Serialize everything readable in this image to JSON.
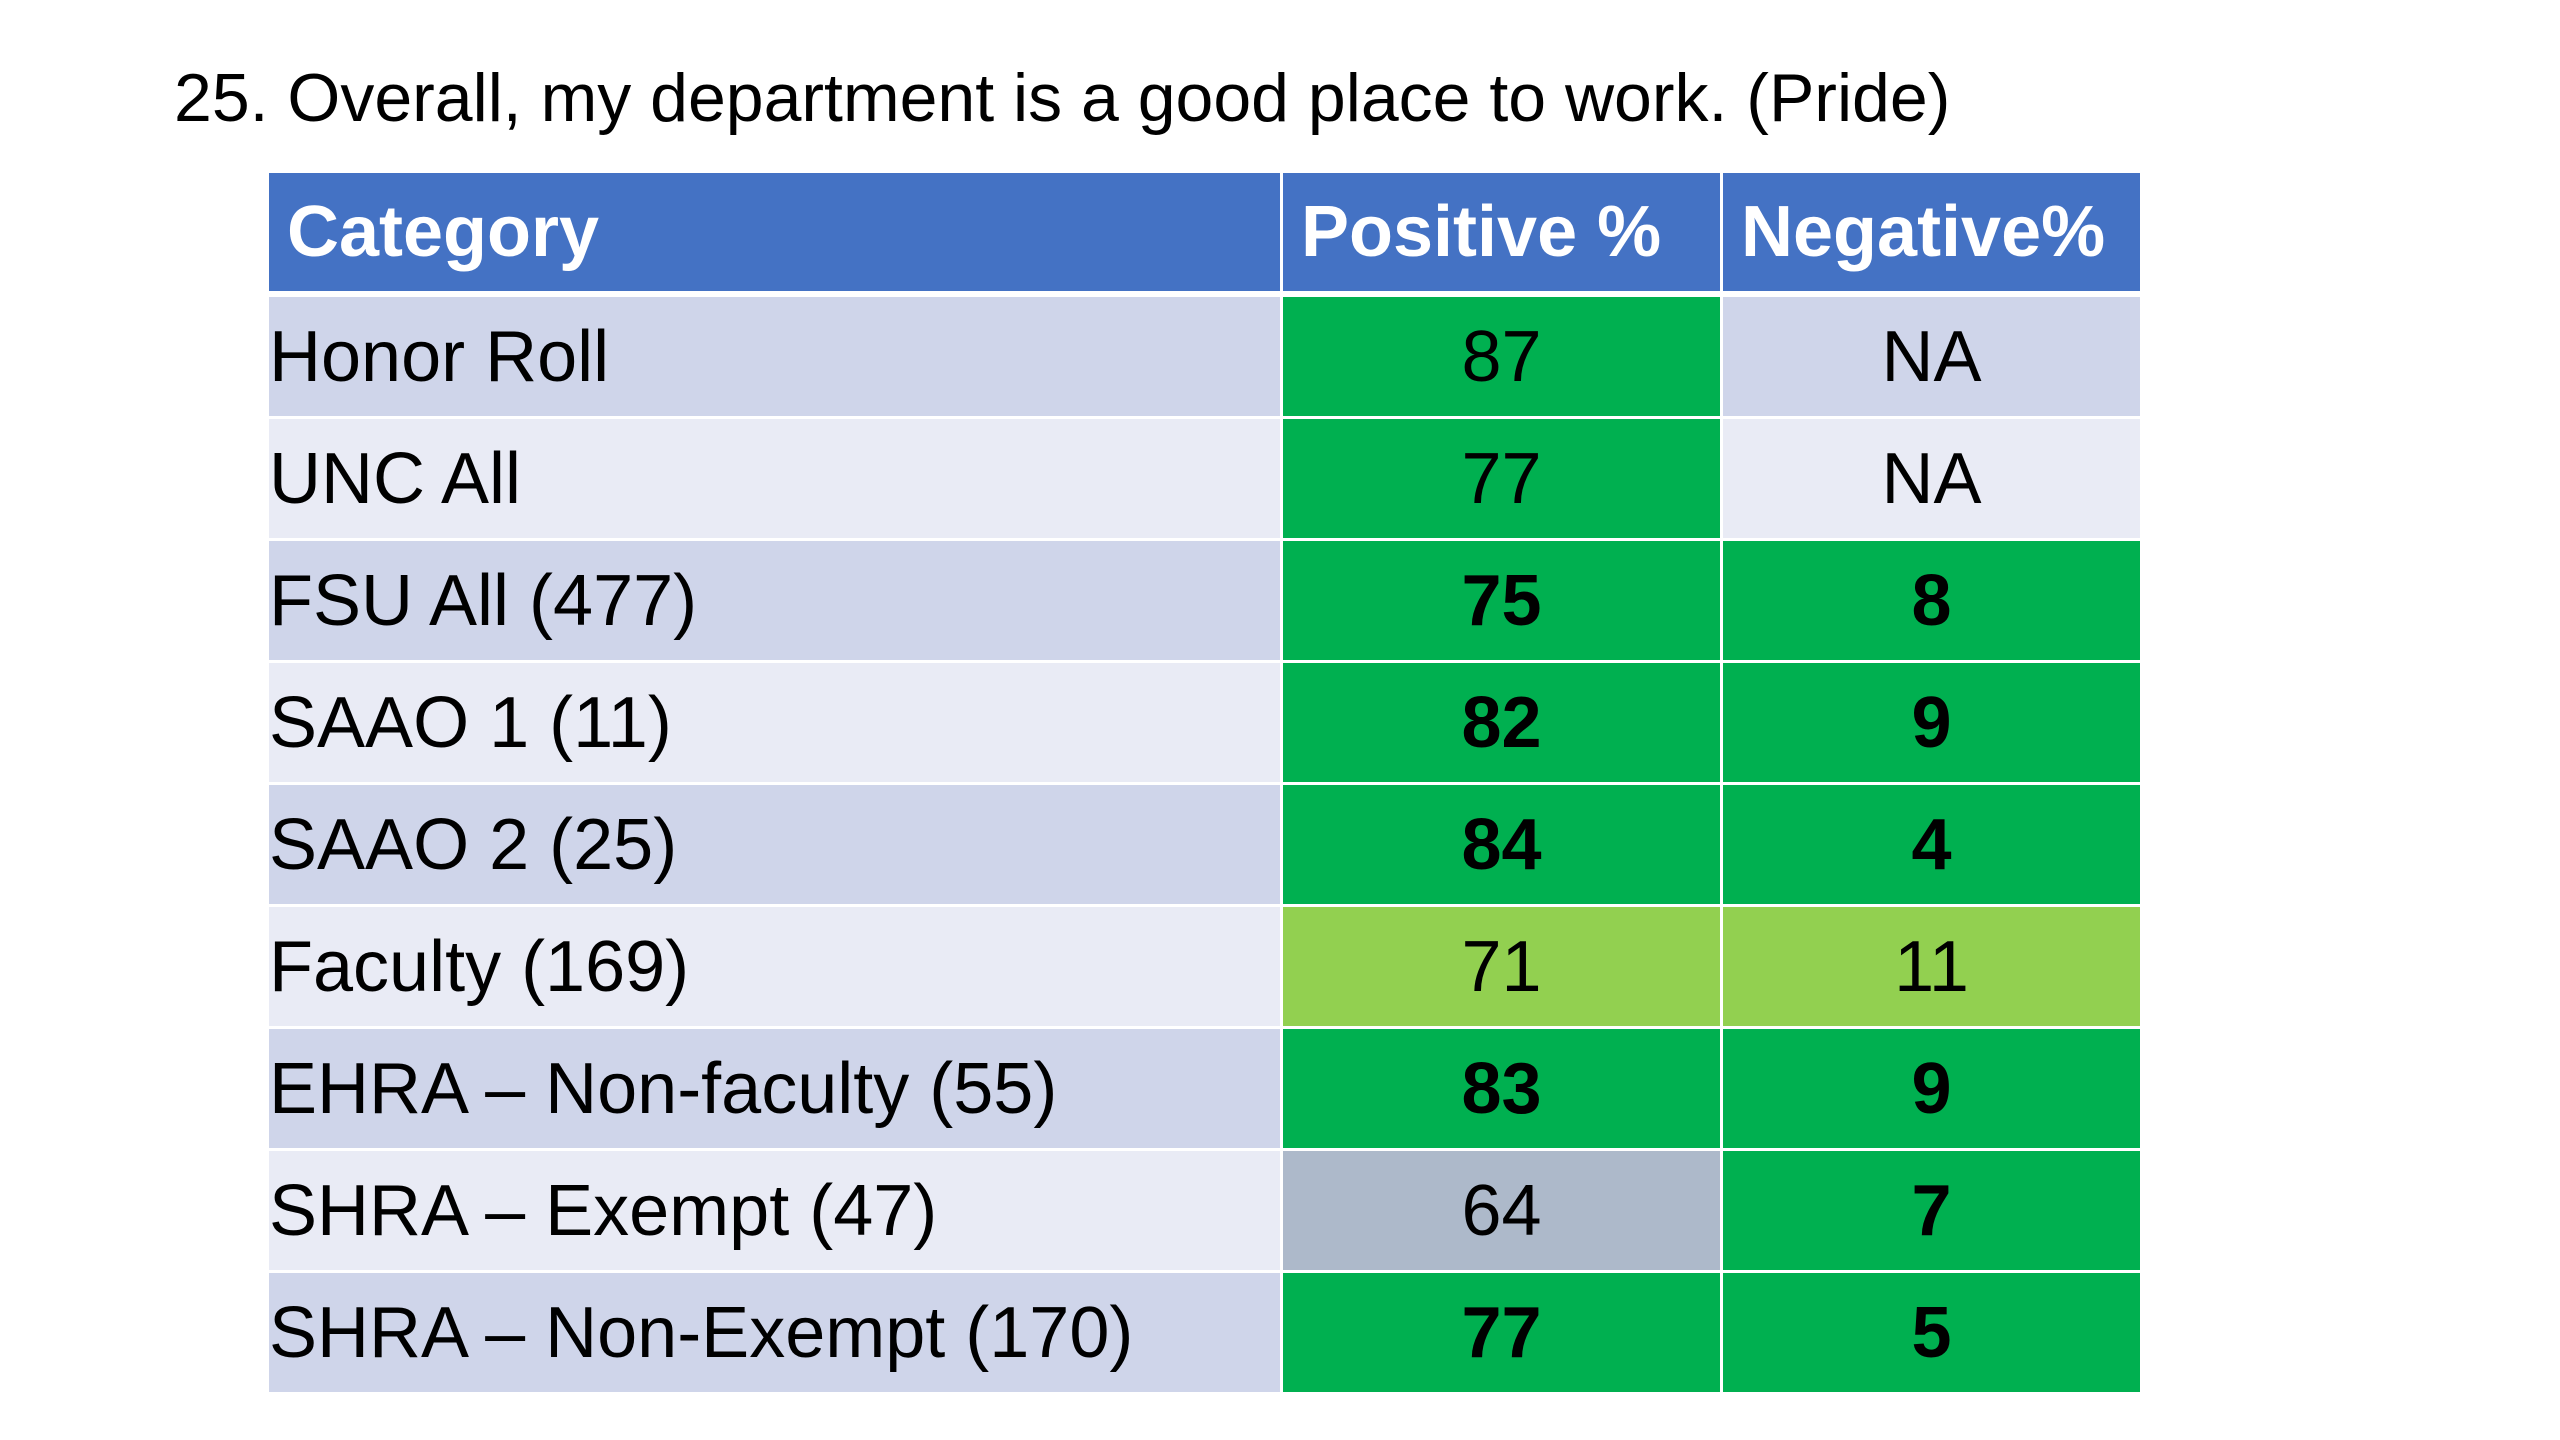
{
  "title": "25. Overall, my department is a good place to work. (Pride)",
  "colors": {
    "header": "#4472c4",
    "row_dark": "#cfd5ea",
    "row_light": "#e9ebf5",
    "green": "#00b050",
    "light_green": "#92d050",
    "grey": "#adb9ca"
  },
  "table": {
    "headers": [
      "Category",
      "Positive %",
      "Negative%"
    ],
    "rows": [
      {
        "category": "Honor Roll",
        "positive": "87",
        "negative": "NA"
      },
      {
        "category": "UNC All",
        "positive": "77",
        "negative": "NA"
      },
      {
        "category": "FSU All (477)",
        "positive": "75",
        "negative": "8"
      },
      {
        "category": "SAAO 1 (11)",
        "positive": "82",
        "negative": "9"
      },
      {
        "category": "SAAO 2 (25)",
        "positive": "84",
        "negative": "4"
      },
      {
        "category": "Faculty (169)",
        "positive": "71",
        "negative": "11"
      },
      {
        "category": "EHRA – Non-faculty (55)",
        "positive": "83",
        "negative": "9"
      },
      {
        "category": "SHRA – Exempt (47)",
        "positive": "64",
        "negative": "7"
      },
      {
        "category": "SHRA – Non-Exempt (170)",
        "positive": "77",
        "negative": "5"
      }
    ]
  }
}
